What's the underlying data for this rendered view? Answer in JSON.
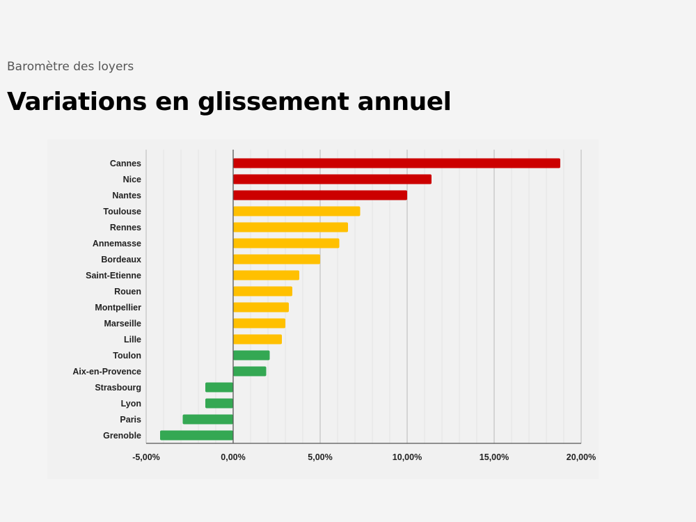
{
  "header": {
    "subtitle": "Baromètre des loyers",
    "title": "Variations en glissement annuel"
  },
  "colors": {
    "high": "#cc0000",
    "mid": "#ffc000",
    "low": "#34a853",
    "background": "#f4f4f4"
  },
  "chart_data": {
    "type": "bar",
    "orientation": "horizontal",
    "categories": [
      "Cannes",
      "Nice",
      "Nantes",
      "Toulouse",
      "Rennes",
      "Annemasse",
      "Bordeaux",
      "Saint-Etienne",
      "Rouen",
      "Montpellier",
      "Marseille",
      "Lille",
      "Toulon",
      "Aix-en-Provence",
      "Strasbourg",
      "Lyon",
      "Paris",
      "Grenoble"
    ],
    "values": [
      18.8,
      11.4,
      10.0,
      7.3,
      6.6,
      6.1,
      5.0,
      3.8,
      3.4,
      3.2,
      3.0,
      2.8,
      2.1,
      1.9,
      -1.6,
      -1.6,
      -2.9,
      -4.2
    ],
    "color_groups": [
      "high",
      "high",
      "high",
      "mid",
      "mid",
      "mid",
      "mid",
      "mid",
      "mid",
      "mid",
      "mid",
      "mid",
      "low",
      "low",
      "low",
      "low",
      "low",
      "low"
    ],
    "xlim": [
      -5,
      20
    ],
    "xticks": [
      -5,
      0,
      5,
      10,
      15,
      20
    ],
    "xtick_labels": [
      "-5,00%",
      "0,00%",
      "5,00%",
      "10,00%",
      "15,00%",
      "20,00%"
    ],
    "grid": true,
    "xlabel": "",
    "ylabel": ""
  }
}
